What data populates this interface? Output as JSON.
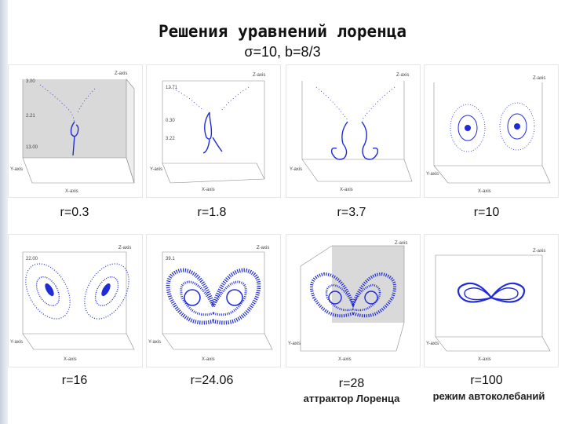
{
  "title": "Решения уравнений лоренца",
  "subtitle": "σ=10, b=8/3",
  "panels": [
    {
      "r_label": "r=0.3",
      "tick_top": "3.00",
      "tick_mid": "2.21",
      "tick_low": "13.00",
      "x_axis": "X-axis",
      "y_axis": "Y-axis",
      "z_axis": "Z-axis"
    },
    {
      "r_label": "r=1.8",
      "tick_top": "12.71",
      "tick_mid": "0.30",
      "tick_low": "3.22",
      "x_axis": "X-axis",
      "y_axis": "Y-axis",
      "z_axis": "Z-axis"
    },
    {
      "r_label": "r=3.7",
      "tick_top": "",
      "tick_mid": "",
      "tick_low": "",
      "x_axis": "X-axis",
      "y_axis": "Y-axis",
      "z_axis": "Z-axis"
    },
    {
      "r_label": "r=10",
      "tick_top": "",
      "tick_mid": "",
      "tick_low": "",
      "x_axis": "X-axis",
      "y_axis": "Y-axis",
      "z_axis": "Z-axis"
    },
    {
      "r_label": "r=16",
      "tick_top": "22.00",
      "tick_mid": "",
      "tick_low": "",
      "x_axis": "X-axis",
      "y_axis": "Y-axis",
      "z_axis": "Z-axis"
    },
    {
      "r_label": "r=24.06",
      "tick_top": "39.1",
      "tick_mid": "",
      "tick_low": "",
      "x_axis": "X-axis",
      "y_axis": "Y-axis",
      "z_axis": "Z-axis"
    },
    {
      "r_label": "r=28",
      "tick_top": "",
      "tick_mid": "",
      "tick_low": "",
      "x_axis": "X-axis",
      "y_axis": "Y-axis",
      "z_axis": "Z-axis"
    },
    {
      "r_label": "r=100",
      "tick_top": "",
      "tick_mid": "",
      "tick_low": "",
      "x_axis": "X-axis",
      "y_axis": "Y-axis",
      "z_axis": "Z-axis"
    }
  ],
  "captions": {
    "r28": "аттрактор Лоренца",
    "r100": "режим автоколебаний"
  },
  "colors": {
    "trajectory": "#1f2bd6",
    "box_edge": "#8a8a8a",
    "box_shade": "#d9d9d9",
    "side_bar": "#c9cfdc"
  }
}
